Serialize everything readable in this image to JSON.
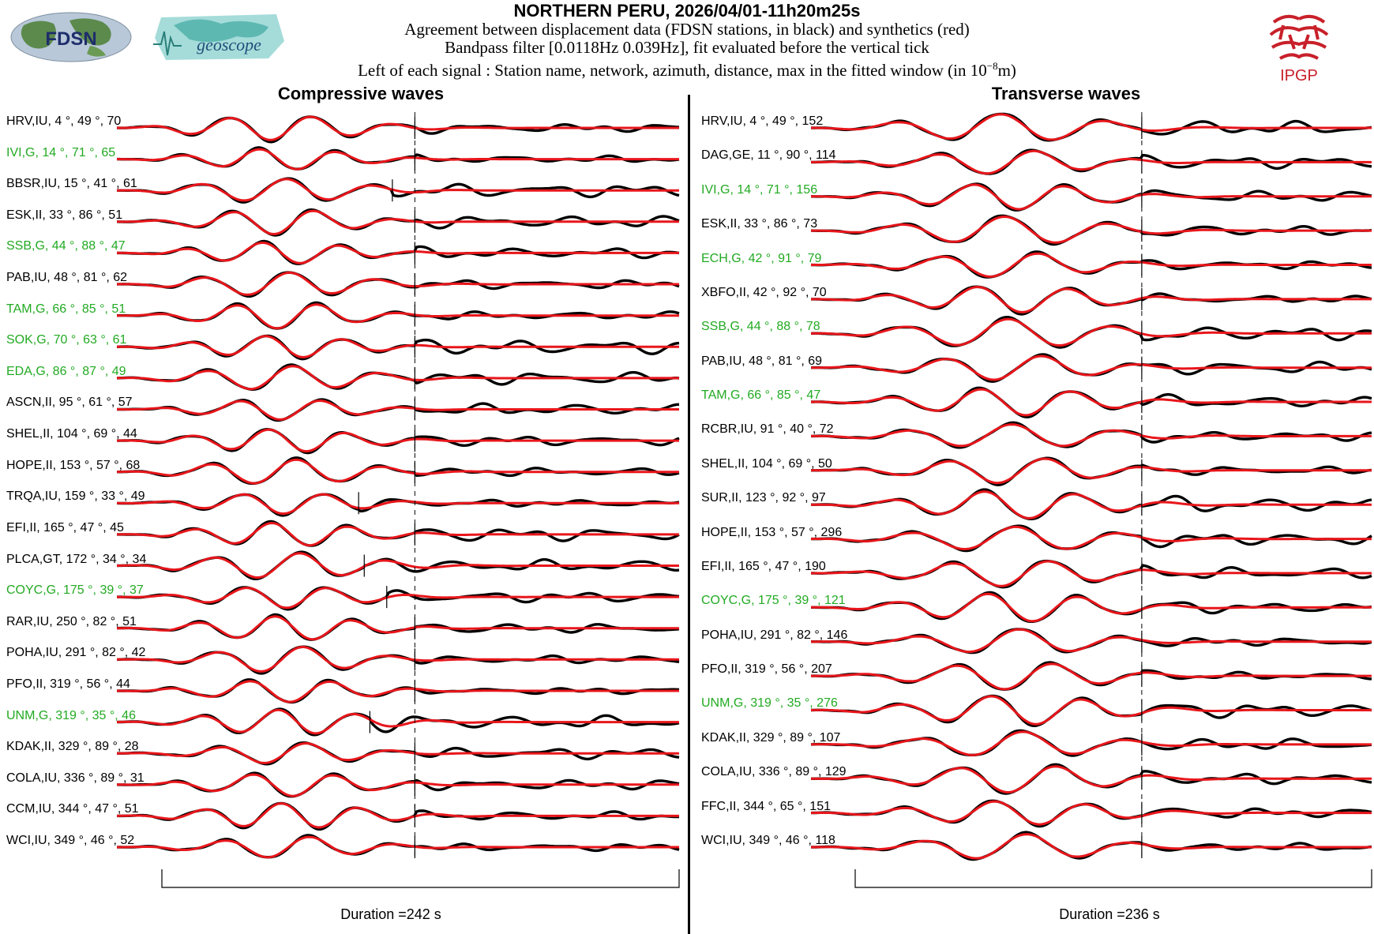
{
  "header": {
    "title": "NORTHERN PERU, 2026/04/01-11h20m25s",
    "line1": "Agreement between displacement data (FDSN stations, in black) and synthetics (red)",
    "line2": "Bandpass filter [0.0118Hz 0.039Hz], fit evaluated before the vertical tick",
    "line3_prefix": "Left of each signal : Station name, network, azimuth, distance, max in the fitted window (in 10",
    "line3_sup": "−8",
    "line3_suffix": "m)"
  },
  "logos": {
    "fdsn": "FDSN",
    "geoscope": "geoscope",
    "ipgp": "IPGP"
  },
  "colors": {
    "data": "#000000",
    "synthetic": "#e8161b",
    "network_g": "#22aa22"
  },
  "chart_data": [
    {
      "type": "line",
      "title": "Compressive waves",
      "duration_label": "Duration =242 s",
      "duration_s": 242,
      "stations": [
        {
          "label": "HRV,IU, 4 °, 49 °, 70",
          "network": "IU",
          "tick": 0.53
        },
        {
          "label": "IVI,G, 14 °, 71 °, 65",
          "network": "G",
          "tick": 0.53
        },
        {
          "label": "BBSR,IU, 15 °, 41 °, 61",
          "network": "IU",
          "tick": 0.49
        },
        {
          "label": "ESK,II, 33 °, 86 °, 51",
          "network": "II",
          "tick": 0.53
        },
        {
          "label": "SSB,G, 44 °, 88 °, 47",
          "network": "G",
          "tick": 0.53
        },
        {
          "label": "PAB,IU, 48 °, 81 °, 62",
          "network": "IU",
          "tick": 0.53
        },
        {
          "label": "TAM,G, 66 °, 85 °, 51",
          "network": "G",
          "tick": 0.53
        },
        {
          "label": "SOK,G, 70 °, 63 °, 61",
          "network": "G",
          "tick": 0.53
        },
        {
          "label": "EDA,G, 86 °, 87 °, 49",
          "network": "G",
          "tick": 0.53
        },
        {
          "label": "ASCN,II, 95 °, 61 °, 57",
          "network": "II",
          "tick": 0.53
        },
        {
          "label": "SHEL,II, 104 °, 69 °, 44",
          "network": "II",
          "tick": 0.53
        },
        {
          "label": "HOPE,II, 153 °, 57 °, 68",
          "network": "II",
          "tick": 0.53
        },
        {
          "label": "TRQA,IU, 159 °, 33 °, 49",
          "network": "IU",
          "tick": 0.43
        },
        {
          "label": "EFI,II, 165 °, 47 °, 45",
          "network": "II",
          "tick": 0.53
        },
        {
          "label": "PLCA,GT, 172 °, 34 °, 34",
          "network": "GT",
          "tick": 0.44
        },
        {
          "label": "COYC,G, 175 °, 39 °, 37",
          "network": "G",
          "tick": 0.48
        },
        {
          "label": "RAR,IU, 250 °, 82 °, 51",
          "network": "IU",
          "tick": 0.53
        },
        {
          "label": "POHA,IU, 291 °, 82 °, 42",
          "network": "IU",
          "tick": 0.53
        },
        {
          "label": "PFO,II, 319 °, 56 °, 44",
          "network": "II",
          "tick": 0.53
        },
        {
          "label": "UNM,G, 319 °, 35 °, 46",
          "network": "G",
          "tick": 0.45
        },
        {
          "label": "KDAK,II, 329 °, 89 °, 28",
          "network": "II",
          "tick": 0.53
        },
        {
          "label": "COLA,IU, 336 °, 89 °, 31",
          "network": "IU",
          "tick": 0.53
        },
        {
          "label": "CCM,IU, 344 °, 47 °, 51",
          "network": "IU",
          "tick": 0.53
        },
        {
          "label": "WCI,IU, 349 °, 46 °, 52",
          "network": "IU",
          "tick": 0.53
        }
      ]
    },
    {
      "type": "line",
      "title": "Transverse waves",
      "duration_label": "Duration =236 s",
      "duration_s": 236,
      "stations": [
        {
          "label": "HRV,IU, 4 °, 49 °, 152",
          "network": "IU",
          "tick": 0.59
        },
        {
          "label": "DAG,GE, 11 °, 90 °, 114",
          "network": "GE",
          "tick": 0.59
        },
        {
          "label": "IVI,G, 14 °, 71 °, 156",
          "network": "G",
          "tick": 0.59
        },
        {
          "label": "ESK,II, 33 °, 86 °, 73",
          "network": "II",
          "tick": 0.59
        },
        {
          "label": "ECH,G, 42 °, 91 °, 79",
          "network": "G",
          "tick": 0.59
        },
        {
          "label": "XBFO,II, 42 °, 92 °, 70",
          "network": "II",
          "tick": 0.59
        },
        {
          "label": "SSB,G, 44 °, 88 °, 78",
          "network": "G",
          "tick": 0.59
        },
        {
          "label": "PAB,IU, 48 °, 81 °, 69",
          "network": "IU",
          "tick": 0.59
        },
        {
          "label": "TAM,G, 66 °, 85 °, 47",
          "network": "G",
          "tick": 0.59
        },
        {
          "label": "RCBR,IU, 91 °, 40 °, 72",
          "network": "IU",
          "tick": 0.59
        },
        {
          "label": "SHEL,II, 104 °, 69 °, 50",
          "network": "II",
          "tick": 0.59
        },
        {
          "label": "SUR,II, 123 °, 92 °, 97",
          "network": "II",
          "tick": 0.59
        },
        {
          "label": "HOPE,II, 153 °, 57 °, 296",
          "network": "II",
          "tick": 0.59
        },
        {
          "label": "EFI,II, 165 °, 47 °, 190",
          "network": "II",
          "tick": 0.59
        },
        {
          "label": "COYC,G, 175 °, 39 °, 121",
          "network": "G",
          "tick": 0.59
        },
        {
          "label": "POHA,IU, 291 °, 82 °, 146",
          "network": "IU",
          "tick": 0.59
        },
        {
          "label": "PFO,II, 319 °, 56 °, 207",
          "network": "II",
          "tick": 0.59
        },
        {
          "label": "UNM,G, 319 °, 35 °, 276",
          "network": "G",
          "tick": 0.59
        },
        {
          "label": "KDAK,II, 329 °, 89 °, 107",
          "network": "II",
          "tick": 0.59
        },
        {
          "label": "COLA,IU, 336 °, 89 °, 129",
          "network": "IU",
          "tick": 0.59
        },
        {
          "label": "FFC,II, 344 °, 65 °, 151",
          "network": "II",
          "tick": 0.59
        },
        {
          "label": "WCI,IU, 349 °, 46 °, 118",
          "network": "IU",
          "tick": 0.59
        }
      ]
    }
  ]
}
